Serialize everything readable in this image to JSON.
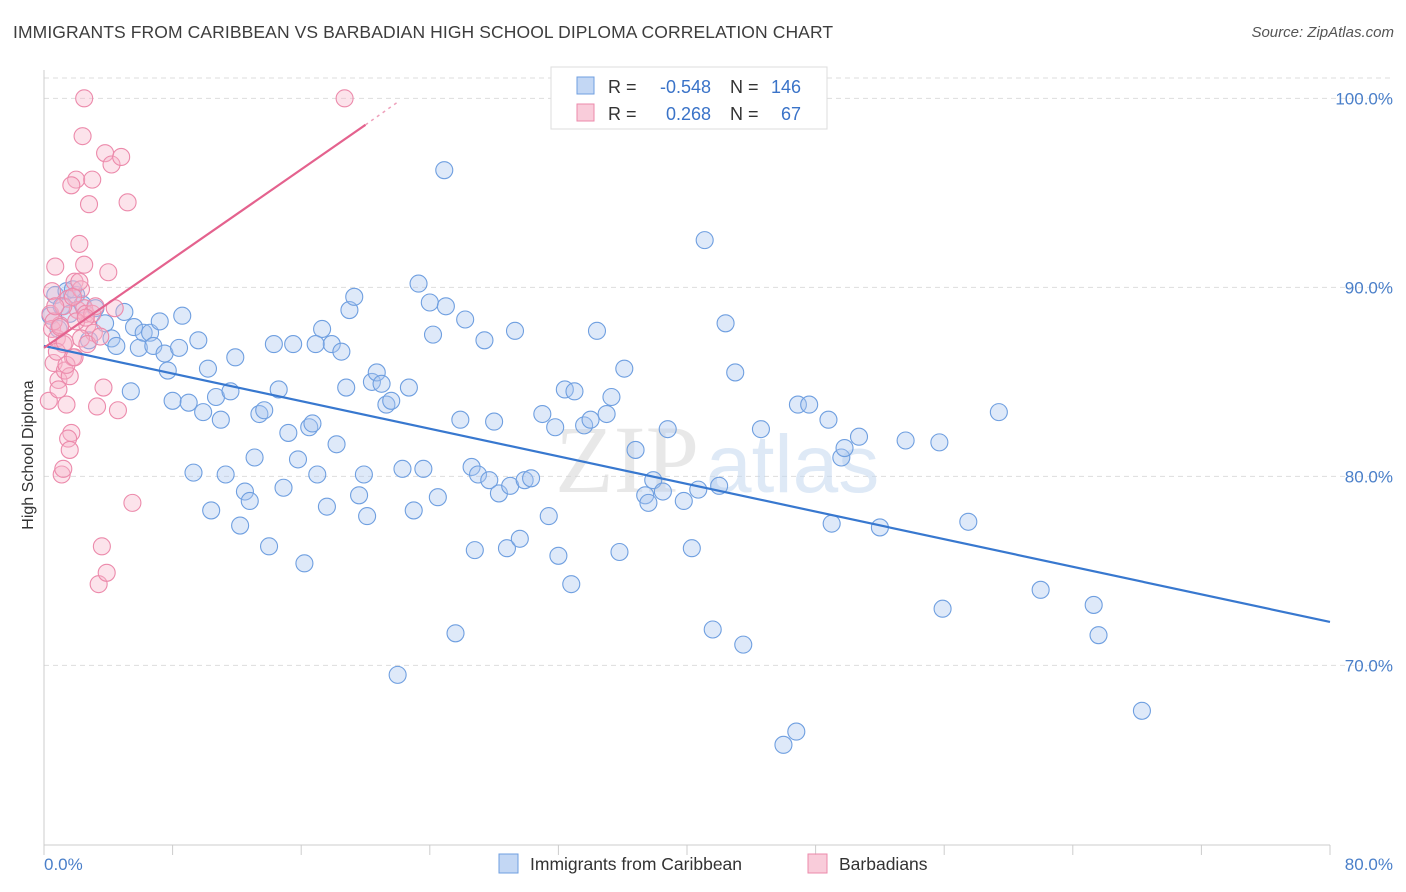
{
  "header": {
    "title": "IMMIGRANTS FROM CARIBBEAN VS BARBADIAN HIGH SCHOOL DIPLOMA CORRELATION CHART",
    "source": "Source: ZipAtlas.com"
  },
  "watermark": {
    "part1": "ZIP",
    "part2": "atlas"
  },
  "colors": {
    "blue_fill": "#a9c6f0",
    "blue_stroke": "#6f9fe0",
    "blue_line": "#3878cf",
    "pink_fill": "#f6b6cb",
    "pink_stroke": "#ec8aab",
    "pink_line": "#e4628e",
    "axis_label": "#4a7fc9",
    "grid": "#dddddd"
  },
  "stats": {
    "r_label": "R =",
    "n_label": "N =",
    "rows": [
      {
        "series": "blue",
        "r": "-0.548",
        "n": "146"
      },
      {
        "series": "pink",
        "r": "0.268",
        "n": "67"
      }
    ]
  },
  "chart_data": {
    "type": "scatter",
    "title": "IMMIGRANTS FROM CARIBBEAN VS BARBADIAN HIGH SCHOOL DIPLOMA CORRELATION CHART",
    "xlabel": "",
    "ylabel": "High School Diploma",
    "xlim": [
      0,
      80
    ],
    "ylim": [
      60.5,
      101.5
    ],
    "x_tick_labels": [
      "0.0%",
      "80.0%"
    ],
    "y_ticks": [
      70,
      80,
      90,
      100
    ],
    "y_tick_labels": [
      "70.0%",
      "80.0%",
      "90.0%",
      "100.0%"
    ],
    "grid": true,
    "legend_position": "bottom-center",
    "series": [
      {
        "name": "Immigrants from Caribbean",
        "color": "blue",
        "trend": {
          "x": [
            0,
            80
          ],
          "y": [
            86.9,
            72.3
          ]
        },
        "points": [
          [
            0.4,
            88.5
          ],
          [
            0.7,
            89.6
          ],
          [
            1.1,
            89.0
          ],
          [
            1.4,
            89.8
          ],
          [
            1.6,
            88.6
          ],
          [
            2.0,
            89.6
          ],
          [
            2.4,
            89.1
          ],
          [
            2.8,
            87.2
          ],
          [
            3.2,
            88.9
          ],
          [
            3.8,
            88.1
          ],
          [
            4.2,
            87.3
          ],
          [
            4.5,
            86.9
          ],
          [
            5.0,
            88.7
          ],
          [
            5.4,
            84.5
          ],
          [
            5.6,
            87.9
          ],
          [
            5.9,
            86.8
          ],
          [
            6.2,
            87.6
          ],
          [
            6.6,
            87.6
          ],
          [
            6.8,
            86.9
          ],
          [
            7.2,
            88.2
          ],
          [
            7.5,
            86.5
          ],
          [
            7.7,
            85.6
          ],
          [
            8.0,
            84.0
          ],
          [
            8.4,
            86.8
          ],
          [
            8.6,
            88.5
          ],
          [
            9.0,
            83.9
          ],
          [
            9.3,
            80.2
          ],
          [
            9.6,
            87.2
          ],
          [
            9.9,
            83.4
          ],
          [
            10.2,
            85.7
          ],
          [
            10.4,
            78.2
          ],
          [
            10.7,
            84.2
          ],
          [
            11.0,
            83.0
          ],
          [
            11.3,
            80.1
          ],
          [
            11.6,
            84.5
          ],
          [
            11.9,
            86.3
          ],
          [
            12.2,
            77.4
          ],
          [
            12.5,
            79.2
          ],
          [
            12.8,
            78.7
          ],
          [
            13.1,
            81.0
          ],
          [
            13.4,
            83.3
          ],
          [
            13.7,
            83.5
          ],
          [
            14.0,
            76.3
          ],
          [
            14.3,
            87.0
          ],
          [
            14.6,
            84.6
          ],
          [
            14.9,
            79.4
          ],
          [
            15.2,
            82.3
          ],
          [
            15.5,
            87.0
          ],
          [
            15.8,
            80.9
          ],
          [
            16.2,
            75.4
          ],
          [
            16.5,
            82.6
          ],
          [
            16.7,
            82.8
          ],
          [
            17.0,
            80.1
          ],
          [
            17.3,
            87.8
          ],
          [
            17.6,
            78.4
          ],
          [
            17.9,
            87.0
          ],
          [
            18.2,
            81.7
          ],
          [
            18.5,
            86.6
          ],
          [
            18.8,
            84.7
          ],
          [
            19.0,
            88.8
          ],
          [
            19.3,
            89.5
          ],
          [
            19.6,
            79.0
          ],
          [
            19.9,
            80.1
          ],
          [
            20.1,
            77.9
          ],
          [
            20.4,
            85.0
          ],
          [
            20.7,
            85.5
          ],
          [
            21.0,
            84.9
          ],
          [
            21.3,
            83.8
          ],
          [
            21.6,
            84.0
          ],
          [
            22.0,
            69.5
          ],
          [
            22.3,
            80.4
          ],
          [
            22.7,
            84.7
          ],
          [
            23.0,
            78.2
          ],
          [
            23.3,
            90.2
          ],
          [
            23.6,
            80.4
          ],
          [
            24.0,
            89.2
          ],
          [
            24.2,
            87.5
          ],
          [
            24.5,
            78.9
          ],
          [
            25.0,
            89.0
          ],
          [
            25.6,
            71.7
          ],
          [
            25.9,
            83.0
          ],
          [
            26.2,
            88.3
          ],
          [
            26.6,
            80.5
          ],
          [
            26.8,
            76.1
          ],
          [
            27.0,
            80.1
          ],
          [
            27.4,
            87.2
          ],
          [
            27.7,
            79.8
          ],
          [
            28.0,
            82.9
          ],
          [
            28.3,
            79.1
          ],
          [
            28.8,
            76.2
          ],
          [
            29.0,
            79.5
          ],
          [
            29.3,
            87.7
          ],
          [
            29.6,
            76.7
          ],
          [
            29.9,
            79.8
          ],
          [
            30.3,
            79.9
          ],
          [
            31.0,
            83.3
          ],
          [
            31.4,
            77.9
          ],
          [
            31.8,
            82.6
          ],
          [
            32.0,
            75.8
          ],
          [
            32.4,
            84.6
          ],
          [
            32.8,
            74.3
          ],
          [
            33.0,
            84.5
          ],
          [
            33.6,
            82.7
          ],
          [
            34.0,
            83.0
          ],
          [
            34.4,
            87.7
          ],
          [
            35.0,
            83.3
          ],
          [
            35.3,
            84.2
          ],
          [
            35.8,
            76.0
          ],
          [
            36.1,
            85.7
          ],
          [
            36.8,
            81.4
          ],
          [
            37.4,
            79.0
          ],
          [
            37.6,
            78.6
          ],
          [
            37.9,
            79.8
          ],
          [
            38.5,
            79.2
          ],
          [
            38.8,
            82.5
          ],
          [
            39.8,
            78.7
          ],
          [
            40.3,
            76.2
          ],
          [
            40.7,
            79.3
          ],
          [
            41.1,
            92.5
          ],
          [
            41.6,
            71.9
          ],
          [
            42.0,
            79.5
          ],
          [
            42.4,
            88.1
          ],
          [
            43.0,
            85.5
          ],
          [
            43.5,
            71.1
          ],
          [
            44.6,
            82.5
          ],
          [
            46.0,
            65.8
          ],
          [
            46.8,
            66.5
          ],
          [
            46.9,
            83.8
          ],
          [
            47.6,
            83.8
          ],
          [
            48.8,
            83.0
          ],
          [
            49.0,
            77.5
          ],
          [
            49.6,
            81.0
          ],
          [
            49.8,
            81.5
          ],
          [
            50.7,
            82.1
          ],
          [
            52.0,
            77.3
          ],
          [
            53.6,
            81.9
          ],
          [
            55.7,
            81.8
          ],
          [
            55.9,
            73.0
          ],
          [
            57.5,
            77.6
          ],
          [
            59.4,
            83.4
          ],
          [
            62.0,
            74.0
          ],
          [
            65.3,
            73.2
          ],
          [
            65.6,
            71.6
          ],
          [
            68.3,
            67.6
          ],
          [
            24.9,
            96.2
          ],
          [
            1.8,
            89.9
          ],
          [
            0.9,
            87.8
          ],
          [
            16.9,
            87.0
          ]
        ]
      },
      {
        "name": "Barbadians",
        "color": "pink",
        "trend": {
          "x": [
            0,
            20
          ],
          "y": [
            86.8,
            98.6
          ]
        },
        "trend_dash": {
          "x": [
            20,
            22
          ],
          "y": [
            98.6,
            99.8
          ]
        },
        "points": [
          [
            0.3,
            84.0
          ],
          [
            0.4,
            88.6
          ],
          [
            0.5,
            87.8
          ],
          [
            0.6,
            86.0
          ],
          [
            0.7,
            91.1
          ],
          [
            0.8,
            87.3
          ],
          [
            0.9,
            85.1
          ],
          [
            1.0,
            88.0
          ],
          [
            1.1,
            80.1
          ],
          [
            1.2,
            87.0
          ],
          [
            1.3,
            85.6
          ],
          [
            1.4,
            83.8
          ],
          [
            1.5,
            89.4
          ],
          [
            1.6,
            85.3
          ],
          [
            1.7,
            82.3
          ],
          [
            1.8,
            86.3
          ],
          [
            1.9,
            90.3
          ],
          [
            2.0,
            95.7
          ],
          [
            2.1,
            88.8
          ],
          [
            2.2,
            92.3
          ],
          [
            2.3,
            89.9
          ],
          [
            2.4,
            98.0
          ],
          [
            2.5,
            88.9
          ],
          [
            2.6,
            88.6
          ],
          [
            2.7,
            88.0
          ],
          [
            2.8,
            94.4
          ],
          [
            3.0,
            88.6
          ],
          [
            3.1,
            87.6
          ],
          [
            3.2,
            89.0
          ],
          [
            3.4,
            74.3
          ],
          [
            3.6,
            76.3
          ],
          [
            3.8,
            97.1
          ],
          [
            3.9,
            74.9
          ],
          [
            4.0,
            90.8
          ],
          [
            4.2,
            96.5
          ],
          [
            4.4,
            88.9
          ],
          [
            4.6,
            83.5
          ],
          [
            4.8,
            96.9
          ],
          [
            5.2,
            94.5
          ],
          [
            5.5,
            78.6
          ],
          [
            0.5,
            89.8
          ],
          [
            0.6,
            88.2
          ],
          [
            0.8,
            86.6
          ],
          [
            0.9,
            84.6
          ],
          [
            1.0,
            87.9
          ],
          [
            1.2,
            89.0
          ],
          [
            1.3,
            87.1
          ],
          [
            1.4,
            85.9
          ],
          [
            1.5,
            82.0
          ],
          [
            1.6,
            81.4
          ],
          [
            1.7,
            95.4
          ],
          [
            1.8,
            89.5
          ],
          [
            1.9,
            86.3
          ],
          [
            2.0,
            88.2
          ],
          [
            2.2,
            90.3
          ],
          [
            2.3,
            87.3
          ],
          [
            2.5,
            91.2
          ],
          [
            2.6,
            88.4
          ],
          [
            2.7,
            87.0
          ],
          [
            3.0,
            95.7
          ],
          [
            3.3,
            83.7
          ],
          [
            3.5,
            87.4
          ],
          [
            3.7,
            84.7
          ],
          [
            18.7,
            100.0
          ],
          [
            2.5,
            100.0
          ],
          [
            1.2,
            80.4
          ],
          [
            0.7,
            89.0
          ]
        ]
      }
    ]
  },
  "legend": {
    "items": [
      {
        "label": "Immigrants from Caribbean",
        "color": "blue"
      },
      {
        "label": "Barbadians",
        "color": "pink"
      }
    ]
  }
}
